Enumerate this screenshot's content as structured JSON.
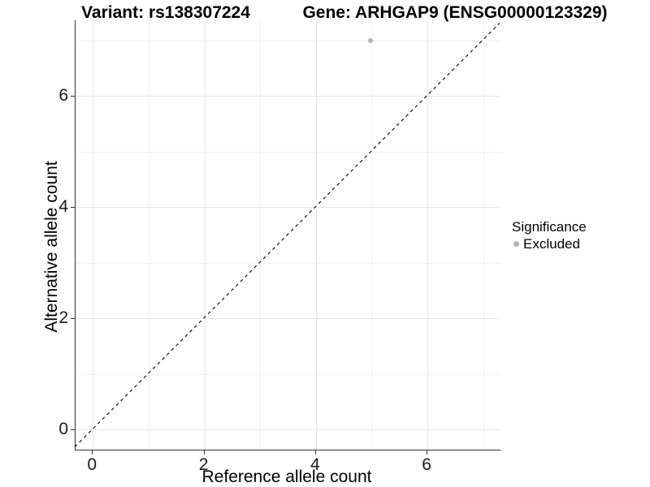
{
  "titles": {
    "variant": "Variant: rs138307224",
    "gene": "Gene: ARHGAP9 (ENSG00000123329)"
  },
  "chart_data": {
    "type": "scatter",
    "xlabel": "Reference allele count",
    "ylabel": "Alternative allele count",
    "xlim": [
      -0.31,
      7.31
    ],
    "ylim": [
      -0.36,
      7.36
    ],
    "x_ticks": [
      0,
      2,
      4,
      6
    ],
    "y_ticks": [
      0,
      2,
      4,
      6
    ],
    "x_minor_gridlines": [
      1,
      3,
      5,
      7
    ],
    "y_minor_gridlines": [
      1,
      3,
      5,
      7
    ],
    "grid": "on",
    "points": [
      {
        "x": 5,
        "y": 7,
        "significance": "Excluded"
      }
    ],
    "identity_line": {
      "slope": 1,
      "intercept": 0,
      "style": "dashed"
    },
    "legend": {
      "title": "Significance",
      "position": "right",
      "entries": [
        {
          "label": "Excluded",
          "color": "#b3b3b3"
        }
      ]
    }
  },
  "colors": {
    "background": "#ffffff",
    "grid_major": "#e7e7e7",
    "grid_minor": "#f1f1f1",
    "axis_line": "#333333",
    "tick_mark": "#333333",
    "tick_text": "#1a1a1a",
    "title_text": "#000000",
    "identity_line": "#000000",
    "point": "#b3b3b3"
  }
}
